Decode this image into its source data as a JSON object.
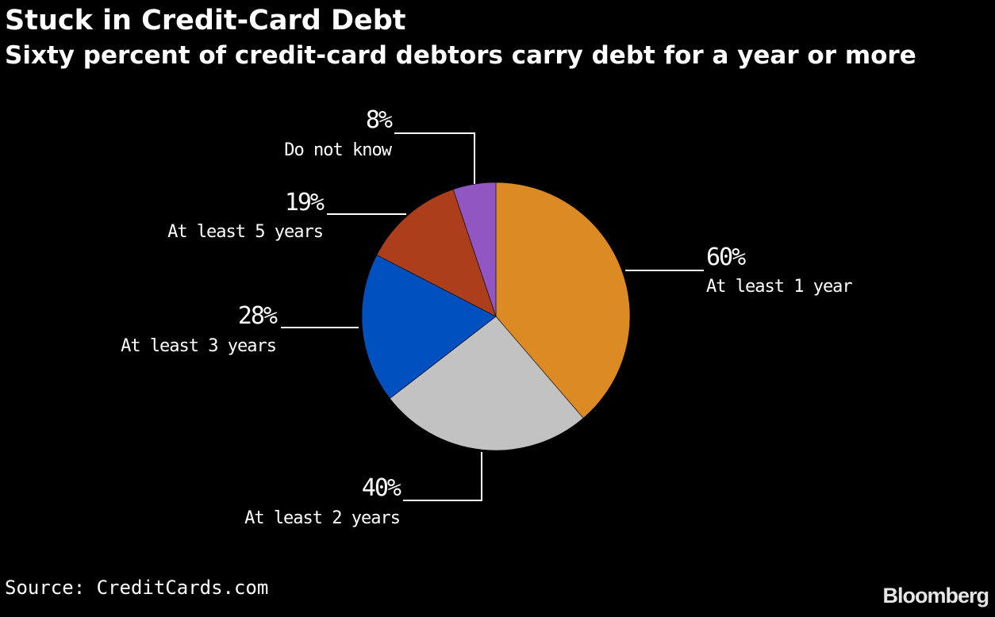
{
  "chart_data": {
    "type": "pie",
    "title": "Stuck in Credit-Card Debt",
    "subtitle": "Sixty percent of credit-card debtors carry debt for a year or more",
    "slices": [
      {
        "label": "At least 1 year",
        "value": 60,
        "value_label": "60%",
        "color": "#dc8a24"
      },
      {
        "label": "At least 2 years",
        "value": 40,
        "value_label": "40%",
        "color": "#c2c2c2"
      },
      {
        "label": "At least 3 years",
        "value": 28,
        "value_label": "28%",
        "color": "#0050bf"
      },
      {
        "label": "At least 5 years",
        "value": 19,
        "value_label": "19%",
        "color": "#ad3e1c"
      },
      {
        "label": "Do not know",
        "value": 8,
        "value_label": "8%",
        "color": "#9156c1"
      }
    ],
    "start": "12 o'clock",
    "direction": "clockwise",
    "legend": "none"
  },
  "source": "Source: CreditCards.com",
  "brand": "Bloomberg"
}
